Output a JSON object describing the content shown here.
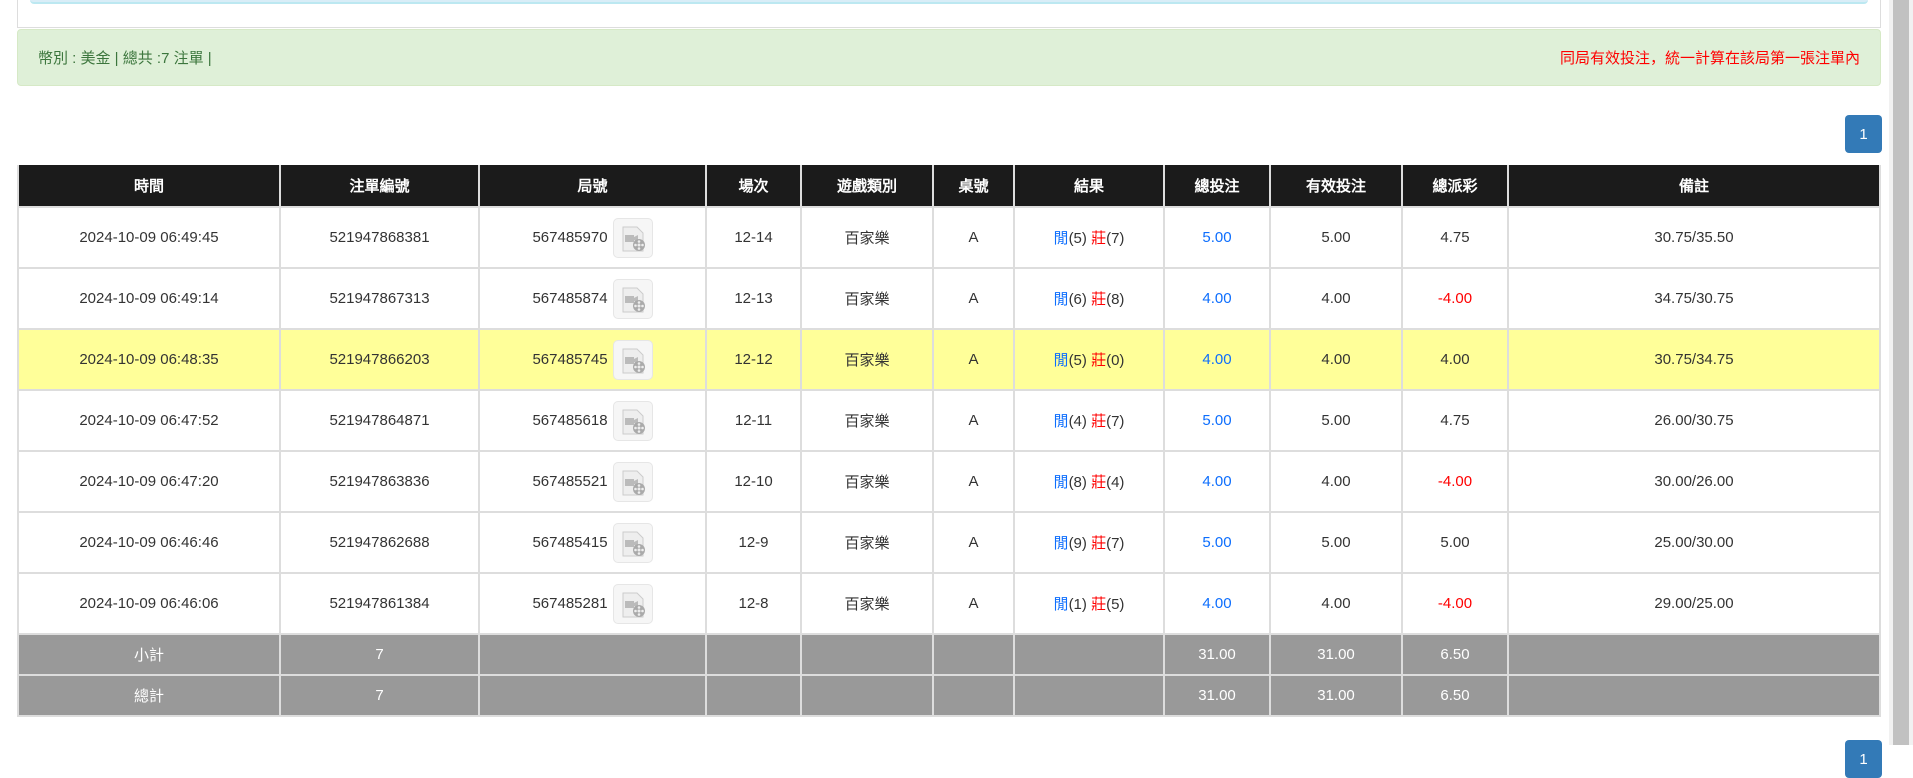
{
  "summary": {
    "left": "幣別 : 美金 | 總共 :7 注單 |",
    "right": "同局有效投注，統一計算在該局第一張注單內"
  },
  "pagination": {
    "current": "1"
  },
  "colors": {
    "blue": "#0d6efd",
    "red": "#ff0000",
    "highlight": "#ffff99",
    "header": "#1b1b1b",
    "summary_row": "#999999"
  },
  "table": {
    "headers": [
      "時間",
      "注單編號",
      "局號",
      "場次",
      "遊戲類別",
      "桌號",
      "結果",
      "總投注",
      "有效投注",
      "總派彩",
      "備註"
    ],
    "rows": [
      {
        "time": "2024-10-09 06:49:45",
        "bet_id": "521947868381",
        "round": "567485970",
        "shoe": "12-14",
        "game": "百家樂",
        "table": "A",
        "player": "閒",
        "player_pts": "(5)",
        "banker": "莊",
        "banker_pts": "(7)",
        "total": "5.00",
        "valid": "5.00",
        "payout": "4.75",
        "payout_neg": false,
        "note": "30.75/35.50",
        "highlight": false
      },
      {
        "time": "2024-10-09 06:49:14",
        "bet_id": "521947867313",
        "round": "567485874",
        "shoe": "12-13",
        "game": "百家樂",
        "table": "A",
        "player": "閒",
        "player_pts": "(6)",
        "banker": "莊",
        "banker_pts": "(8)",
        "total": "4.00",
        "valid": "4.00",
        "payout": "-4.00",
        "payout_neg": true,
        "note": "34.75/30.75",
        "highlight": false
      },
      {
        "time": "2024-10-09 06:48:35",
        "bet_id": "521947866203",
        "round": "567485745",
        "shoe": "12-12",
        "game": "百家樂",
        "table": "A",
        "player": "閒",
        "player_pts": "(5)",
        "banker": "莊",
        "banker_pts": "(0)",
        "total": "4.00",
        "valid": "4.00",
        "payout": "4.00",
        "payout_neg": false,
        "note": "30.75/34.75",
        "highlight": true
      },
      {
        "time": "2024-10-09 06:47:52",
        "bet_id": "521947864871",
        "round": "567485618",
        "shoe": "12-11",
        "game": "百家樂",
        "table": "A",
        "player": "閒",
        "player_pts": "(4)",
        "banker": "莊",
        "banker_pts": "(7)",
        "total": "5.00",
        "valid": "5.00",
        "payout": "4.75",
        "payout_neg": false,
        "note": "26.00/30.75",
        "highlight": false
      },
      {
        "time": "2024-10-09 06:47:20",
        "bet_id": "521947863836",
        "round": "567485521",
        "shoe": "12-10",
        "game": "百家樂",
        "table": "A",
        "player": "閒",
        "player_pts": "(8)",
        "banker": "莊",
        "banker_pts": "(4)",
        "total": "4.00",
        "valid": "4.00",
        "payout": "-4.00",
        "payout_neg": true,
        "note": "30.00/26.00",
        "highlight": false
      },
      {
        "time": "2024-10-09 06:46:46",
        "bet_id": "521947862688",
        "round": "567485415",
        "shoe": "12-9",
        "game": "百家樂",
        "table": "A",
        "player": "閒",
        "player_pts": "(9)",
        "banker": "莊",
        "banker_pts": "(7)",
        "total": "5.00",
        "valid": "5.00",
        "payout": "5.00",
        "payout_neg": false,
        "note": "25.00/30.00",
        "highlight": false
      },
      {
        "time": "2024-10-09 06:46:06",
        "bet_id": "521947861384",
        "round": "567485281",
        "shoe": "12-8",
        "game": "百家樂",
        "table": "A",
        "player": "閒",
        "player_pts": "(1)",
        "banker": "莊",
        "banker_pts": "(5)",
        "total": "4.00",
        "valid": "4.00",
        "payout": "-4.00",
        "payout_neg": true,
        "note": "29.00/25.00",
        "highlight": false
      }
    ],
    "subtotal": {
      "label": "小計",
      "count": "7",
      "total": "31.00",
      "valid": "31.00",
      "payout": "6.50"
    },
    "grandtotal": {
      "label": "總計",
      "count": "7",
      "total": "31.00",
      "valid": "31.00",
      "payout": "6.50"
    }
  }
}
